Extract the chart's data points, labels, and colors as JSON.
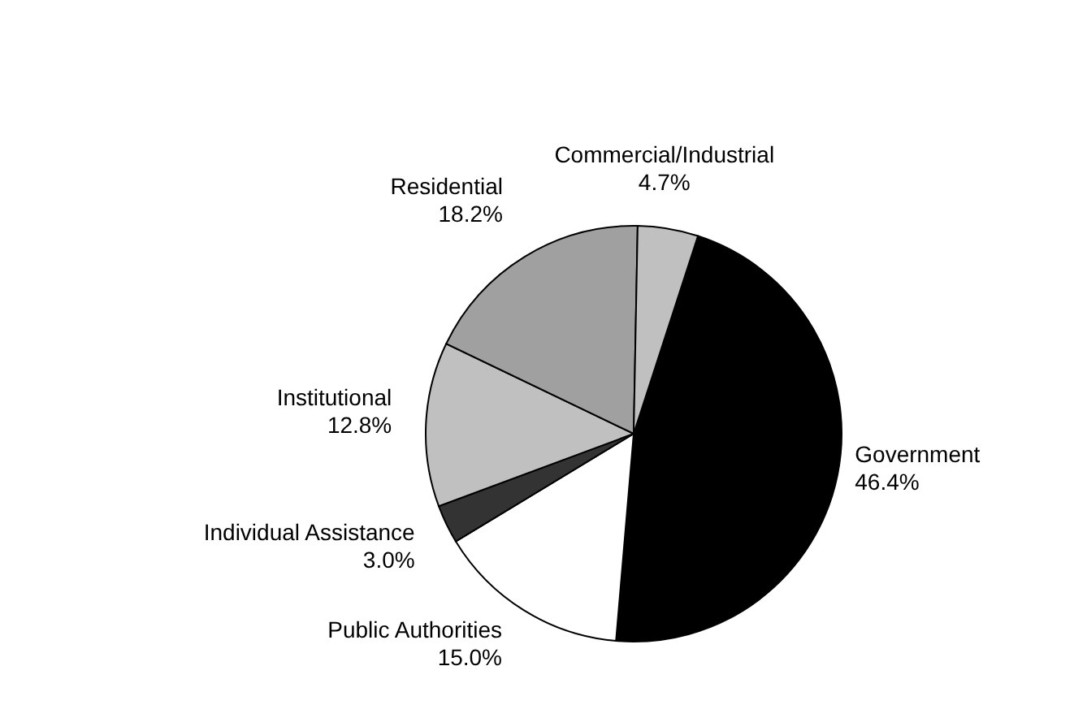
{
  "chart_data": {
    "type": "pie",
    "categories": [
      "Government",
      "Public Authorities",
      "Individual Assistance",
      "Institutional",
      "Residential",
      "Commercial/Industrial"
    ],
    "values": [
      46.4,
      15.0,
      3.0,
      12.8,
      18.2,
      4.7
    ],
    "value_labels": [
      "46.4%",
      "15.0%",
      "3.0%",
      "12.8%",
      "18.2%",
      "4.7%"
    ],
    "colors": [
      "#000000",
      "#ffffff",
      "#333333",
      "#c0c0c0",
      "#a0a0a0",
      "#c0c0c0"
    ],
    "legend": false
  }
}
